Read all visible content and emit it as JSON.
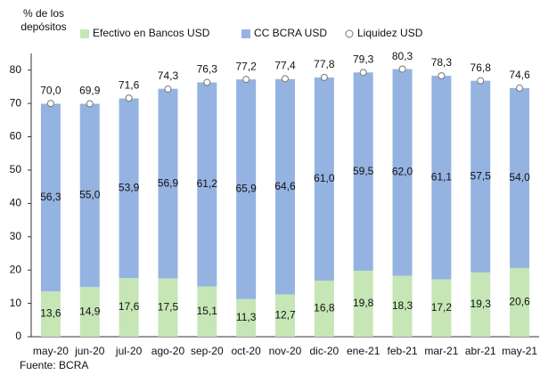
{
  "chart_data": {
    "type": "bar",
    "ylabel": "% de los depósitos",
    "source": "Fuente: BCRA",
    "categories": [
      "may-20",
      "jun-20",
      "jul-20",
      "ago-20",
      "sep-20",
      "oct-20",
      "nov-20",
      "dic-20",
      "ene-21",
      "feb-21",
      "mar-21",
      "abr-21",
      "may-21"
    ],
    "series": [
      {
        "name": "Efectivo en Bancos USD",
        "type": "bar",
        "color": "#c6e6b6",
        "values": [
          13.6,
          14.9,
          17.6,
          17.5,
          15.1,
          11.3,
          12.7,
          16.8,
          19.8,
          18.3,
          17.2,
          19.3,
          20.6
        ],
        "value_labels": [
          "13,6",
          "14,9",
          "17,6",
          "17,5",
          "15,1",
          "11,3",
          "12,7",
          "16,8",
          "19,8",
          "18,3",
          "17,2",
          "19,3",
          "20,6"
        ]
      },
      {
        "name": "CC BCRA USD",
        "type": "bar",
        "color": "#95b3e1",
        "values": [
          56.3,
          55.0,
          53.9,
          56.9,
          61.2,
          65.9,
          64.6,
          61.0,
          59.5,
          62.0,
          61.1,
          57.5,
          54.0
        ],
        "value_labels": [
          "56,3",
          "55,0",
          "53,9",
          "56,9",
          "61,2",
          "65,9",
          "64,6",
          "61,0",
          "59,5",
          "62,0",
          "61,1",
          "57,5",
          "54,0"
        ]
      },
      {
        "name": "Liquidez USD",
        "type": "scatter",
        "color": "#ffffff",
        "values": [
          70.0,
          69.9,
          71.6,
          74.3,
          76.3,
          77.2,
          77.4,
          77.8,
          79.3,
          80.3,
          78.3,
          76.8,
          74.6
        ],
        "value_labels": [
          "70,0",
          "69,9",
          "71,6",
          "74,3",
          "76,3",
          "77,2",
          "77,4",
          "77,8",
          "79,3",
          "80,3",
          "78,3",
          "76,8",
          "74,6"
        ]
      }
    ],
    "ylim": [
      0,
      85
    ],
    "yticks": [
      0,
      10,
      20,
      30,
      40,
      50,
      60,
      70,
      80
    ],
    "grid": false,
    "legend": "top"
  }
}
